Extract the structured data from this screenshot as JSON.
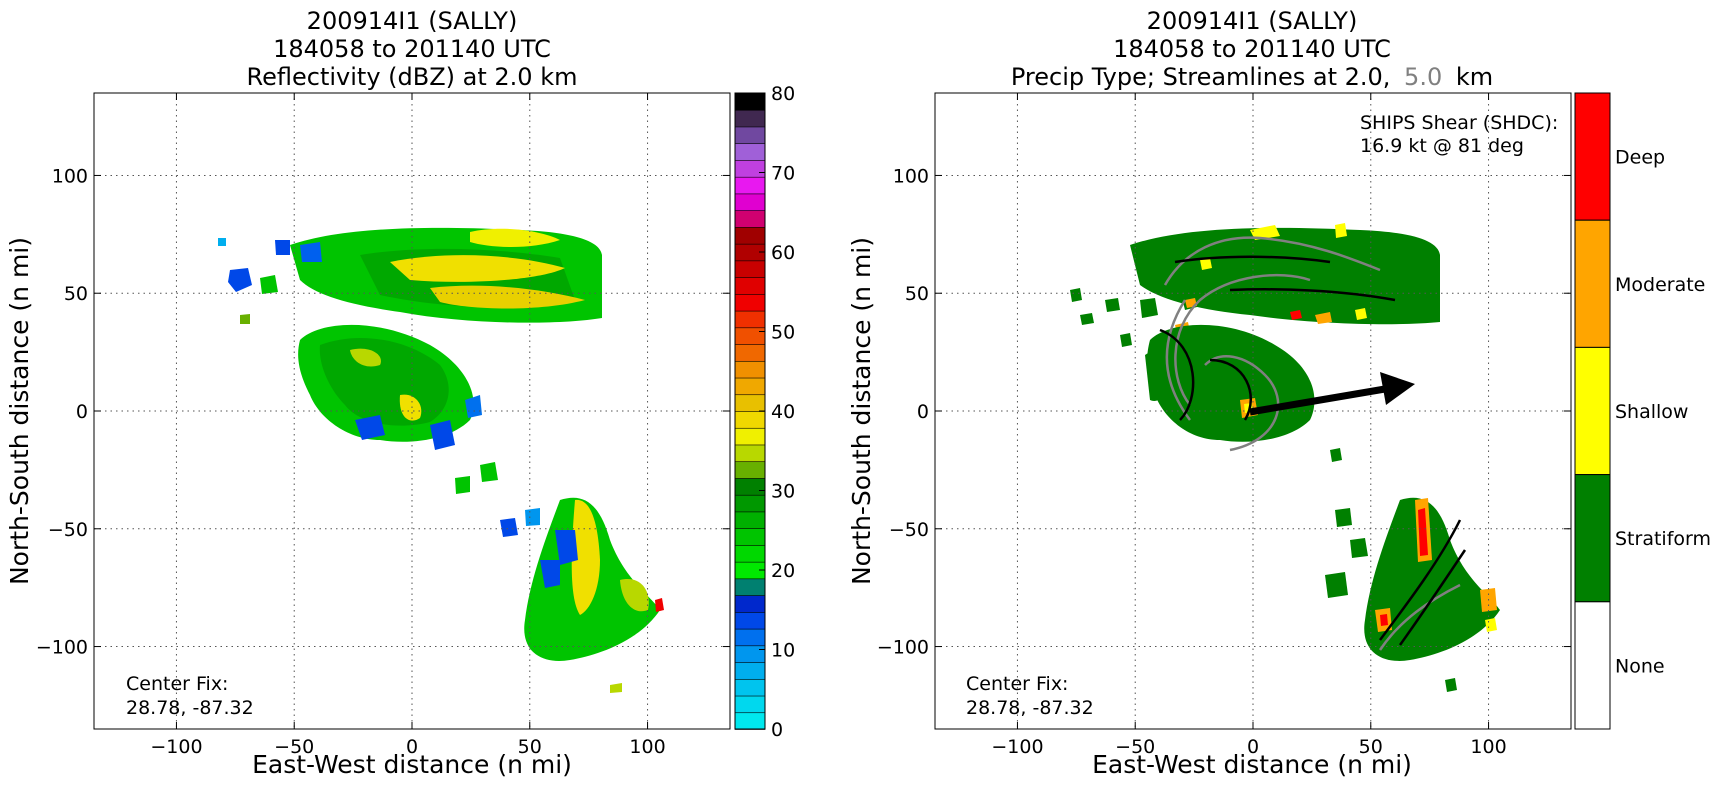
{
  "left_panel": {
    "title": [
      "200914I1 (SALLY)",
      "184058 to 201140 UTC",
      "Reflectivity (dBZ) at 2.0 km"
    ],
    "xlabel": "East-West distance (n mi)",
    "ylabel": "North-South distance (n mi)",
    "center_fix": [
      "Center Fix:",
      "28.78, -87.32"
    ],
    "colorbar": {
      "ticks": [
        0,
        10,
        20,
        30,
        40,
        50,
        60,
        70,
        80
      ],
      "colors": [
        "#00e8ee",
        "#00d8ee",
        "#00c4ee",
        "#00aeee",
        "#0096ee",
        "#0070ee",
        "#0048e8",
        "#0028cc",
        "#008070",
        "#00e800",
        "#00d800",
        "#00c400",
        "#00b000",
        "#009800",
        "#008000",
        "#68b000",
        "#b8d800",
        "#f0f000",
        "#f0d800",
        "#e8c000",
        "#f0a800",
        "#f09000",
        "#f06800",
        "#f05000",
        "#f03000",
        "#f00000",
        "#e00000",
        "#c80000",
        "#b00000",
        "#a00000",
        "#d00070",
        "#e000d0",
        "#e818f0",
        "#c040e0",
        "#a060d8",
        "#7048a0",
        "#402850",
        "#000000"
      ]
    }
  },
  "right_panel": {
    "title": [
      "200914I1 (SALLY)",
      "184058 to 201140 UTC"
    ],
    "title_line3_prefix": "Precip Type; Streamlines at 2.0,",
    "title_line3_gray": "5.0",
    "title_line3_suffix": "km",
    "xlabel": "East-West distance (n mi)",
    "ylabel": "North-South distance (n mi)",
    "center_fix": [
      "Center Fix:",
      "28.78, -87.32"
    ],
    "shear_text": [
      "SHIPS Shear (SHDC):",
      "16.9 kt @ 81 deg"
    ],
    "shear_vector": {
      "speed_kt": 16.9,
      "direction_deg": 81
    },
    "colorbar": {
      "categories": [
        "Deep",
        "Moderate",
        "Shallow",
        "Stratiform",
        "None"
      ],
      "colors": [
        "#ff0000",
        "#ffa500",
        "#ffff00",
        "#008000",
        "#ffffff"
      ]
    }
  },
  "chart_data": [
    {
      "type": "heatmap",
      "title": "200914I1 (SALLY) 184058 to 201140 UTC Reflectivity (dBZ) at 2.0 km",
      "xlabel": "East-West distance (n mi)",
      "ylabel": "North-South distance (n mi)",
      "xlim": [
        -135,
        135
      ],
      "ylim": [
        -135,
        135
      ],
      "xticks": [
        -100,
        -50,
        0,
        50,
        100
      ],
      "yticks": [
        -100,
        -50,
        0,
        50,
        100
      ],
      "grid": true,
      "colorbar_range": [
        0,
        80
      ],
      "colorbar_label": ""
    },
    {
      "type": "heatmap",
      "title": "200914I1 (SALLY) 184058 to 201140 UTC Precip Type; Streamlines at 2.0, 5.0 km",
      "xlabel": "East-West distance (n mi)",
      "ylabel": "North-South distance (n mi)",
      "xlim": [
        -135,
        135
      ],
      "ylim": [
        -135,
        135
      ],
      "xticks": [
        -100,
        -50,
        0,
        50,
        100
      ],
      "yticks": [
        -100,
        -50,
        0,
        50,
        100
      ],
      "grid": true,
      "categories": [
        "None",
        "Stratiform",
        "Shallow",
        "Moderate",
        "Deep"
      ]
    }
  ]
}
